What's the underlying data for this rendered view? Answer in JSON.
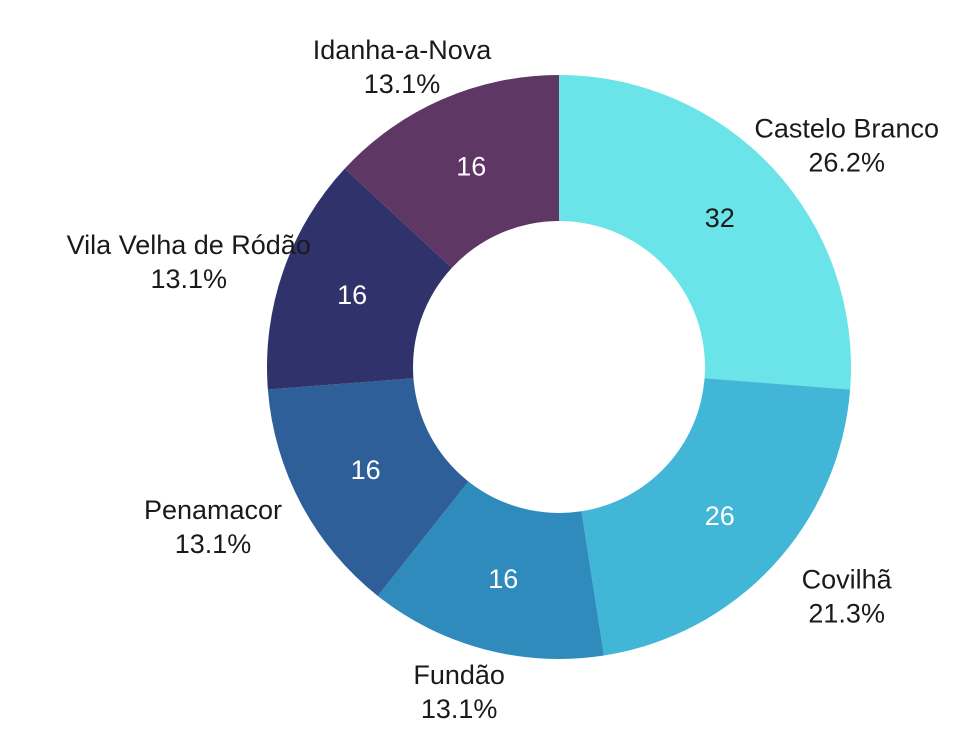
{
  "chart_data": {
    "type": "pie",
    "donut": true,
    "categories": [
      "Castelo Branco",
      "Covilhã",
      "Fundão",
      "Penamacor",
      "Vila Velha de Ródão",
      "Idanha-a-Nova"
    ],
    "values": [
      32,
      26,
      16,
      16,
      16,
      16
    ],
    "percent_labels": [
      "26.2%",
      "21.3%",
      "13.1%",
      "13.1%",
      "13.1%",
      "13.1%"
    ],
    "value_labels": [
      "32",
      "26",
      "16",
      "16",
      "16",
      "16"
    ],
    "colors": [
      "#6ae4e8",
      "#42b6d6",
      "#2e8bbc",
      "#2f5f99",
      "#30336b",
      "#5e3765"
    ],
    "value_text_colors": [
      "#1a1a1a",
      "#ffffff",
      "#ffffff",
      "#ffffff",
      "#ffffff",
      "#ffffff"
    ],
    "start_angle_deg": 0,
    "direction": "clockwise",
    "labels_outside": true,
    "legend": "none"
  }
}
